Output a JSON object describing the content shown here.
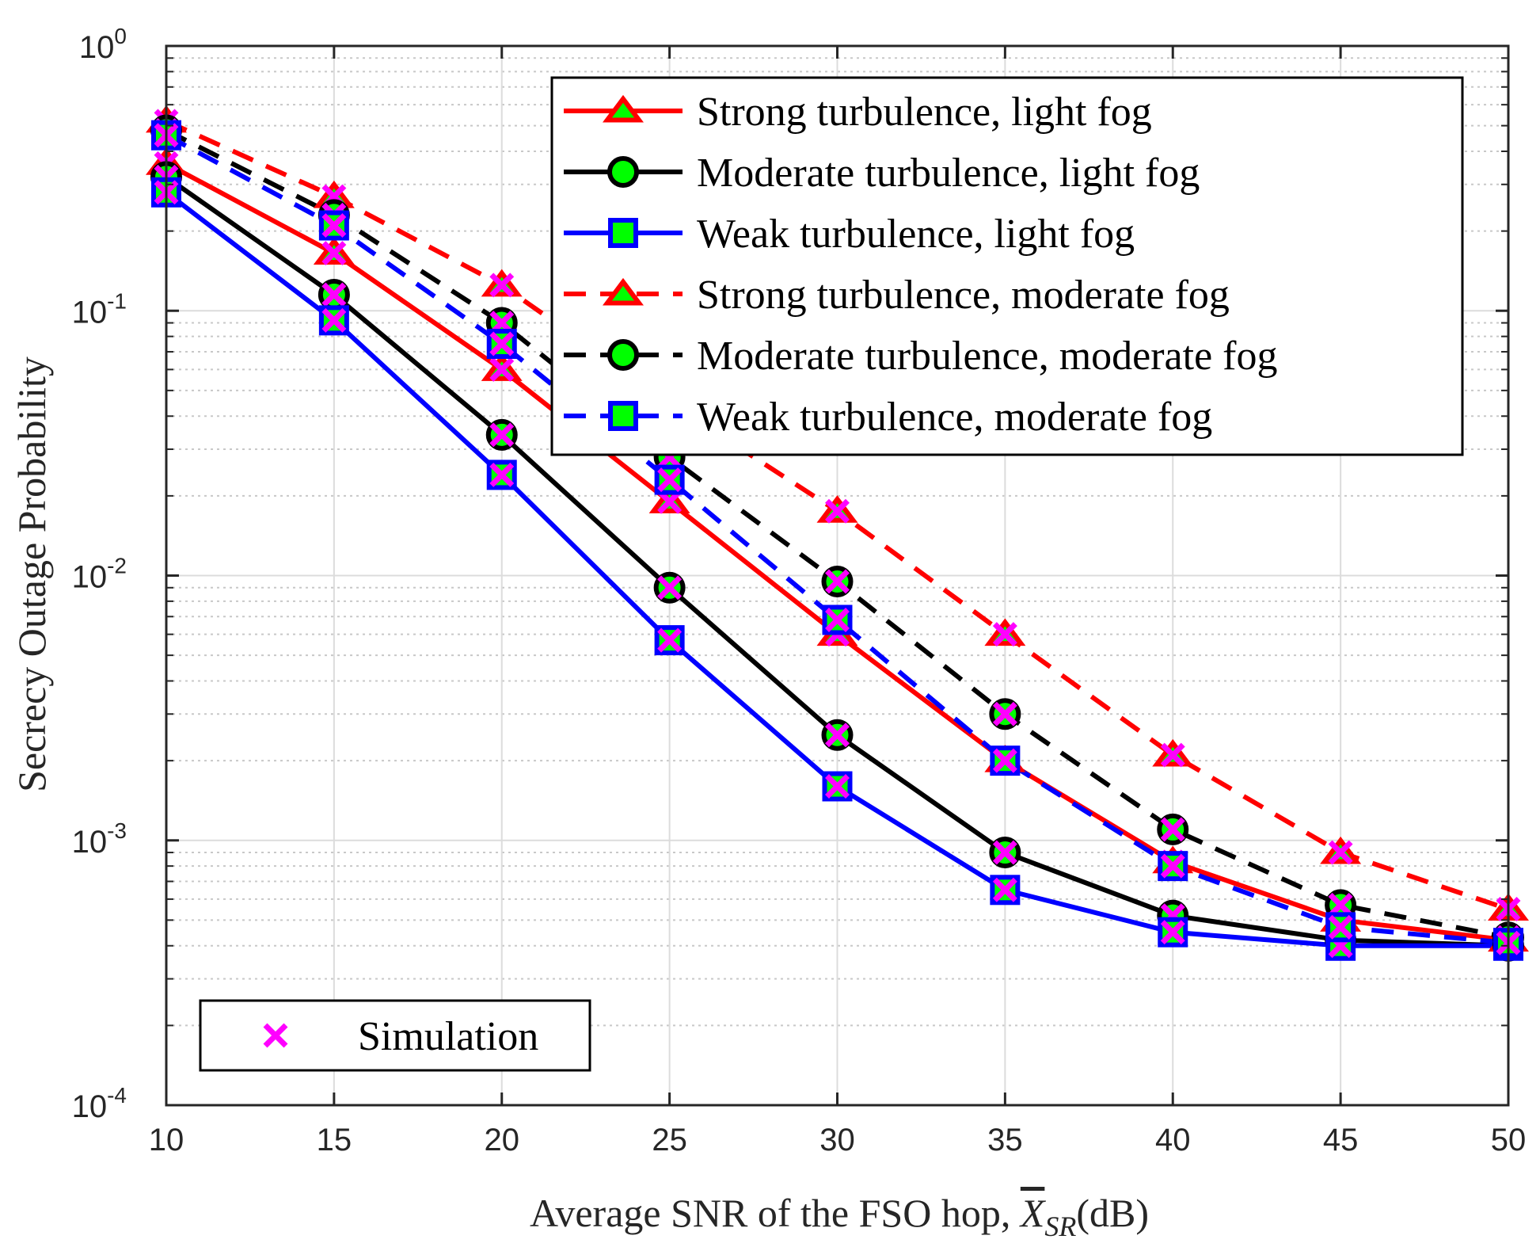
{
  "chart_data": {
    "type": "line",
    "title": "",
    "xlabel": "Average SNR of the FSO hop, ",
    "xlabel_symbol": "X",
    "xlabel_subscript": "SR",
    "xlabel_unit": "(dB)",
    "ylabel": "Secrecy Outage Probability",
    "xlim": [
      10,
      50
    ],
    "ylim": [
      0.0001,
      1
    ],
    "yscale": "log",
    "grid": true,
    "x": [
      10,
      15,
      20,
      25,
      30,
      35,
      40,
      45,
      50
    ],
    "xticks": [
      "10",
      "15",
      "20",
      "25",
      "30",
      "35",
      "40",
      "45",
      "50"
    ],
    "yticks": [
      {
        "base": "10",
        "exp": "-4"
      },
      {
        "base": "10",
        "exp": "-3"
      },
      {
        "base": "10",
        "exp": "-2"
      },
      {
        "base": "10",
        "exp": "-1"
      },
      {
        "base": "10",
        "exp": "0"
      }
    ],
    "series": [
      {
        "name": "Strong turbulence, light fog",
        "color": "#ff0000",
        "dash": "solid",
        "marker": "triangle",
        "values": [
          0.36,
          0.165,
          0.06,
          0.019,
          0.006,
          0.002,
          0.00083,
          0.0005,
          0.00042
        ]
      },
      {
        "name": "Moderate turbulence, light fog",
        "color": "#000000",
        "dash": "solid",
        "marker": "circle",
        "values": [
          0.32,
          0.115,
          0.034,
          0.009,
          0.0025,
          0.0009,
          0.00052,
          0.00042,
          0.0004
        ]
      },
      {
        "name": "Weak turbulence, light fog",
        "color": "#0000ff",
        "dash": "solid",
        "marker": "square",
        "values": [
          0.28,
          0.092,
          0.024,
          0.0057,
          0.0016,
          0.00065,
          0.00045,
          0.0004,
          0.0004
        ]
      },
      {
        "name": "Strong turbulence, moderate fog",
        "color": "#ff0000",
        "dash": "dashed",
        "marker": "triangle",
        "values": [
          0.52,
          0.27,
          0.125,
          0.045,
          0.0175,
          0.006,
          0.0021,
          0.0009,
          0.00055
        ]
      },
      {
        "name": "Moderate turbulence, moderate fog",
        "color": "#000000",
        "dash": "dashed",
        "marker": "circle",
        "values": [
          0.48,
          0.23,
          0.09,
          0.028,
          0.0095,
          0.003,
          0.0011,
          0.00057,
          0.00043
        ]
      },
      {
        "name": "Weak turbulence, moderate fog",
        "color": "#0000ff",
        "dash": "dashed",
        "marker": "square",
        "values": [
          0.46,
          0.21,
          0.075,
          0.023,
          0.0068,
          0.002,
          0.0008,
          0.00047,
          0.00041
        ]
      }
    ],
    "simulation": {
      "name": "Simulation",
      "color": "#ff00ff",
      "marker": "x"
    },
    "marker_face_color": "#00ff00",
    "legend_position": "top-right",
    "simulation_legend_position": "bottom-left"
  }
}
